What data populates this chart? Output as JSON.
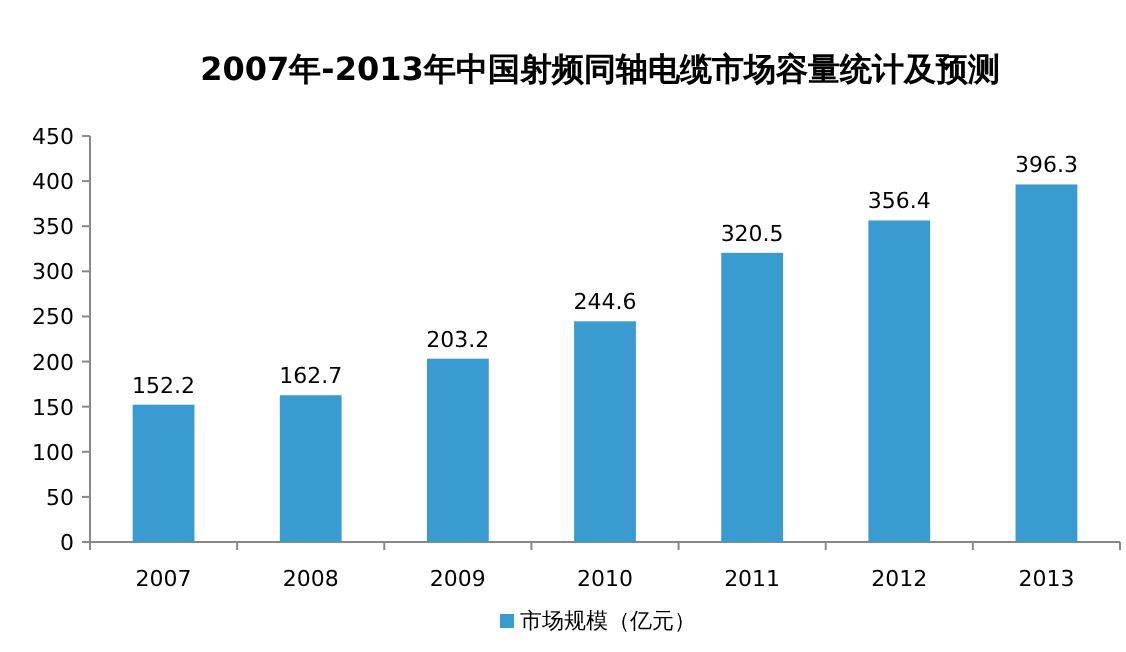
{
  "chart_data": {
    "type": "bar",
    "title": "2007年-2013年中国射频同轴电缆市场容量统计及预测",
    "categories": [
      "2007",
      "2008",
      "2009",
      "2010",
      "2011",
      "2012",
      "2013"
    ],
    "series": [
      {
        "name": "市场规模（亿元）",
        "color": "#3a9bd0",
        "values": [
          152.2,
          162.7,
          203.2,
          244.6,
          320.5,
          356.4,
          396.3
        ]
      }
    ],
    "ylim": [
      0,
      450
    ],
    "yticks": [
      0,
      50,
      100,
      150,
      200,
      250,
      300,
      350,
      400,
      450
    ],
    "data_labels": true,
    "legend": "bottom",
    "grid": false
  }
}
